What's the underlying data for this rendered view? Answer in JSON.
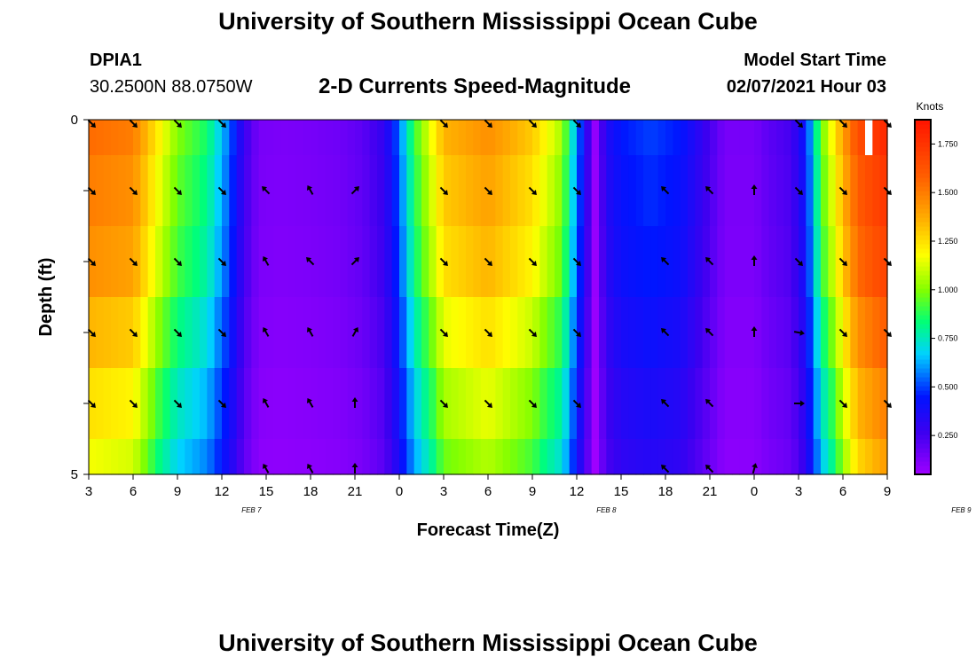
{
  "header": {
    "title": "University of Southern Mississippi Ocean Cube",
    "station": "DPIA1",
    "location": "30.2500N 88.0750W",
    "model_label": "Model Start Time",
    "model_time": "02/07/2021 Hour 03",
    "footer_title": "University of Southern Mississippi Ocean Cube"
  },
  "chart_data": {
    "type": "heatmap",
    "title": "2-D Currents Speed-Magnitude",
    "xlabel": "Forecast Time(Z)",
    "ylabel": "Depth (ft)",
    "x_ticks": [
      "3",
      "6",
      "9",
      "12",
      "15",
      "18",
      "21",
      "0",
      "3",
      "6",
      "9",
      "12",
      "15",
      "18",
      "21",
      "0",
      "3",
      "6",
      "9"
    ],
    "date_labels": [
      {
        "text": "FEB 7",
        "hour": 14
      },
      {
        "text": "FEB 8",
        "hour": 38
      },
      {
        "text": "FEB 9",
        "hour": 62
      }
    ],
    "hours_range": [
      0,
      54
    ],
    "y_ticks": [
      "0",
      "5"
    ],
    "ylim": [
      0,
      5
    ],
    "depth_layers": 5,
    "colorbar": {
      "label": "Knots",
      "range": [
        0.05,
        1.875
      ],
      "ticks": [
        "0.250",
        "0.500",
        "0.750",
        "1.000",
        "1.250",
        "1.500",
        "1.750"
      ],
      "tick_values": [
        0.25,
        0.5,
        0.75,
        1.0,
        1.25,
        1.5,
        1.75
      ]
    },
    "speed_profile_knots": [
      [
        0,
        1.55
      ],
      [
        3,
        1.5
      ],
      [
        4.5,
        1.25
      ],
      [
        6,
        1.0
      ],
      [
        8,
        0.85
      ],
      [
        9.5,
        0.55
      ],
      [
        10.5,
        0.28
      ],
      [
        11.5,
        0.14
      ],
      [
        13,
        0.13
      ],
      [
        15,
        0.14
      ],
      [
        17,
        0.16
      ],
      [
        18.5,
        0.2
      ],
      [
        20,
        0.3
      ],
      [
        21,
        0.55
      ],
      [
        22,
        0.9
      ],
      [
        24,
        1.35
      ],
      [
        27,
        1.45
      ],
      [
        30,
        1.3
      ],
      [
        32,
        1.05
      ],
      [
        33,
        0.6
      ],
      [
        33.6,
        0.35
      ],
      [
        34.2,
        0.06
      ],
      [
        35,
        0.35
      ],
      [
        36,
        0.45
      ],
      [
        38,
        0.5
      ],
      [
        40,
        0.45
      ],
      [
        41.5,
        0.3
      ],
      [
        43,
        0.14
      ],
      [
        45,
        0.14
      ],
      [
        46,
        0.2
      ],
      [
        47.5,
        0.25
      ],
      [
        48.5,
        0.45
      ],
      [
        49.5,
        0.95
      ],
      [
        51,
        1.4
      ],
      [
        52,
        1.65
      ],
      [
        54,
        1.8
      ]
    ],
    "layer_depth_offsets": [
      0.0,
      -0.05,
      -0.1,
      -0.2,
      -0.3,
      -0.38
    ],
    "masked_cell": {
      "hour": 52.5,
      "layer": 0
    },
    "vectors": {
      "hours": [
        0,
        3,
        6,
        9,
        12,
        15,
        18,
        21,
        24,
        27,
        30,
        33,
        36,
        39,
        42,
        45,
        48,
        51,
        54
      ],
      "rows": [
        [
          135,
          135,
          135,
          135,
          null,
          null,
          null,
          null,
          135,
          135,
          135,
          135,
          null,
          null,
          null,
          null,
          135,
          135,
          135
        ],
        [
          135,
          135,
          135,
          135,
          315,
          330,
          45,
          null,
          135,
          135,
          135,
          135,
          null,
          315,
          315,
          0,
          135,
          135,
          135
        ],
        [
          135,
          135,
          135,
          135,
          330,
          315,
          45,
          null,
          135,
          135,
          135,
          135,
          null,
          315,
          315,
          0,
          135,
          135,
          135
        ],
        [
          135,
          135,
          135,
          135,
          330,
          330,
          30,
          null,
          135,
          135,
          135,
          135,
          null,
          315,
          315,
          0,
          100,
          135,
          135
        ],
        [
          135,
          135,
          135,
          135,
          330,
          330,
          0,
          null,
          135,
          135,
          135,
          135,
          null,
          315,
          315,
          null,
          90,
          135,
          135
        ],
        [
          null,
          null,
          null,
          null,
          330,
          330,
          0,
          null,
          null,
          null,
          null,
          null,
          null,
          315,
          315,
          15,
          null,
          null,
          null
        ]
      ]
    }
  }
}
